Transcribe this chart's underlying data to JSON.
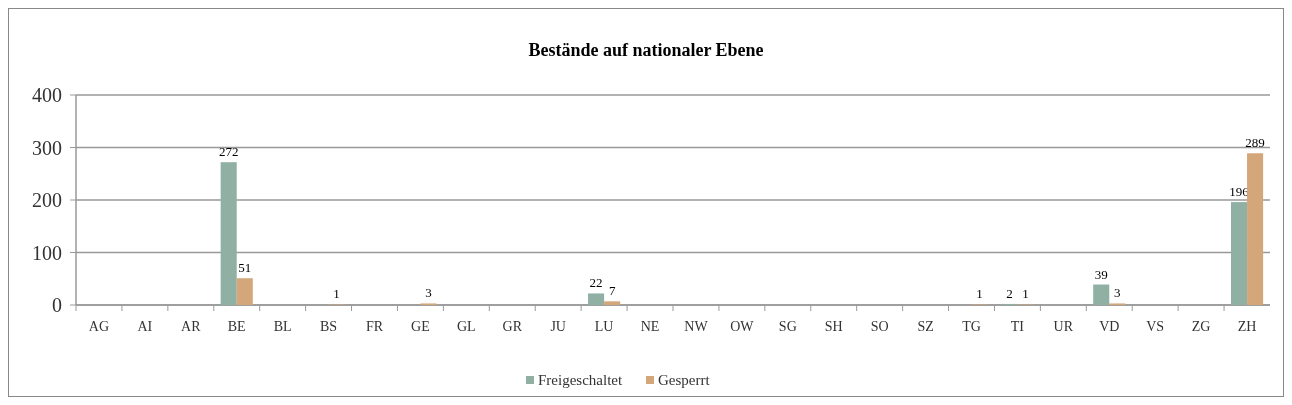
{
  "chart_data": {
    "type": "bar",
    "title": "Bestände auf nationaler Ebene",
    "categories": [
      "AG",
      "AI",
      "AR",
      "BE",
      "BL",
      "BS",
      "FR",
      "GE",
      "GL",
      "GR",
      "JU",
      "LU",
      "NE",
      "NW",
      "OW",
      "SG",
      "SH",
      "SO",
      "SZ",
      "TG",
      "TI",
      "UR",
      "VD",
      "VS",
      "ZG",
      "ZH"
    ],
    "series": [
      {
        "name": "Freigeschaltet",
        "color": "#8fb0a3",
        "values": [
          0,
          0,
          0,
          272,
          0,
          0,
          0,
          0,
          0,
          0,
          0,
          22,
          0,
          0,
          0,
          0,
          0,
          0,
          0,
          0,
          2,
          0,
          39,
          0,
          0,
          196
        ],
        "value_labels": [
          null,
          null,
          null,
          "272",
          null,
          null,
          null,
          null,
          null,
          null,
          null,
          "22",
          null,
          null,
          null,
          null,
          null,
          null,
          null,
          null,
          "2",
          null,
          "39",
          null,
          null,
          "196"
        ]
      },
      {
        "name": "Gesperrt",
        "color": "#d4a77a",
        "values": [
          0,
          0,
          0,
          51,
          0,
          1,
          0,
          3,
          0,
          0,
          0,
          7,
          0,
          0,
          0,
          0,
          0,
          0,
          0,
          1,
          1,
          0,
          3,
          0,
          0,
          289
        ],
        "value_labels": [
          null,
          null,
          null,
          "51",
          null,
          "1",
          null,
          "3",
          null,
          null,
          null,
          "7",
          null,
          null,
          null,
          null,
          null,
          null,
          null,
          "1",
          "1",
          null,
          "3",
          null,
          null,
          "289"
        ]
      }
    ],
    "ylim": [
      0,
      400
    ],
    "yticks": [
      0,
      100,
      200,
      300,
      400
    ],
    "grid": "y",
    "legend": "bottom"
  }
}
